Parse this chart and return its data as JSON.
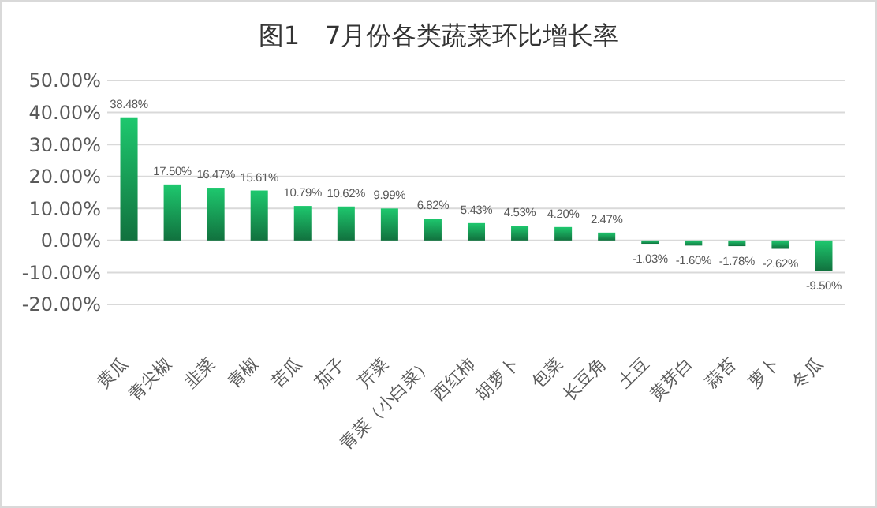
{
  "chart_data": {
    "type": "bar",
    "title": "图1　7月份各类蔬菜环比增长率",
    "categories": [
      "黄瓜",
      "青尖椒",
      "韭菜",
      "青椒",
      "苦瓜",
      "茄子",
      "芹菜",
      "青菜（小白菜）",
      "西红柿",
      "胡萝卜",
      "包菜",
      "长豆角",
      "土豆",
      "黄芽白",
      "蒜苔",
      "萝卜",
      "冬瓜"
    ],
    "values": [
      38.48,
      17.5,
      16.47,
      15.61,
      10.79,
      10.62,
      9.99,
      6.82,
      5.43,
      4.53,
      4.2,
      2.47,
      -1.03,
      -1.6,
      -1.78,
      -2.62,
      -9.5
    ],
    "value_labels": [
      "38.48%",
      "17.50%",
      "16.47%",
      "15.61%",
      "10.79%",
      "10.62%",
      "9.99%",
      "6.82%",
      "5.43%",
      "4.53%",
      "4.20%",
      "2.47%",
      "-1.03%",
      "-1.60%",
      "-1.78%",
      "-2.62%",
      "-9.50%"
    ],
    "color": "#1ec86e",
    "ylim": [
      -20,
      50
    ],
    "yticks": [
      {
        "value": -20,
        "label": "-20.00%"
      },
      {
        "value": -10,
        "label": "-10.00%"
      },
      {
        "value": 0,
        "label": "0.00%"
      },
      {
        "value": 10,
        "label": "10.00%"
      },
      {
        "value": 20,
        "label": "20.00%"
      },
      {
        "value": 30,
        "label": "30.00%"
      },
      {
        "value": 40,
        "label": "40.00%"
      },
      {
        "value": 50,
        "label": "50.00%"
      }
    ],
    "grid": "y"
  }
}
